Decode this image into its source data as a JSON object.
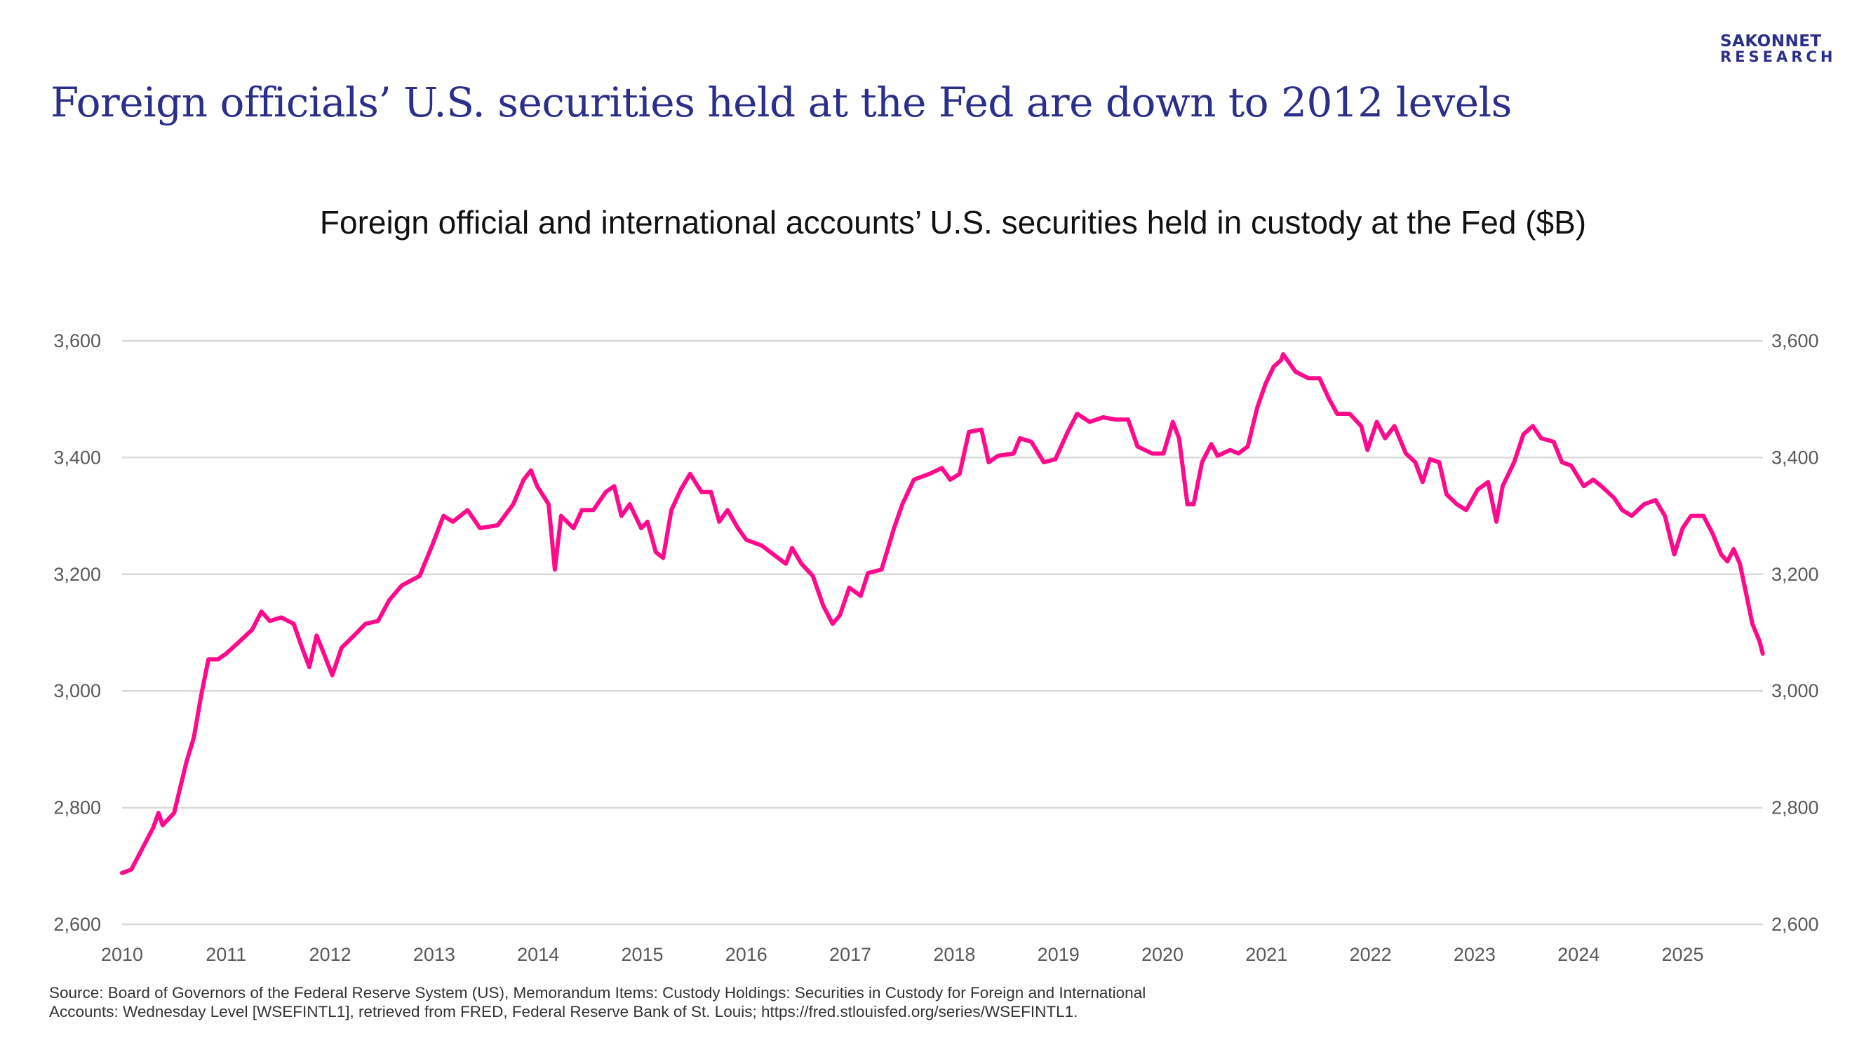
{
  "header": {
    "title": "Foreign officials’ U.S. securities held at the Fed are down to 2012 levels",
    "logo_line1": "SAKONNET",
    "logo_line2": "RESEARCH"
  },
  "footer": {
    "source_line1": "Source: Board of Governors of the Federal Reserve System (US), Memorandum Items: Custody Holdings: Securities in Custody for Foreign and International",
    "source_line2": "Accounts: Wednesday Level [WSEFINTL1], retrieved from FRED, Federal Reserve Bank of St. Louis; https://fred.stlouisfed.org/series/WSEFINTL1."
  },
  "chart_data": {
    "type": "line",
    "title": "Foreign official and international accounts’ U.S. securities held in custody at the Fed ($B)",
    "xlabel": "",
    "ylabel": "",
    "ylim": [
      2600,
      3600
    ],
    "xlim": [
      2010,
      2025.77
    ],
    "grid": true,
    "line_color": "#ff0a8c",
    "y_ticks": [
      "2,600",
      "2,800",
      "3,000",
      "3,200",
      "3,400",
      "3,600"
    ],
    "y_tick_values": [
      2600,
      2800,
      3000,
      3200,
      3400,
      3600
    ],
    "x_ticks": [
      "2010",
      "2011",
      "2012",
      "2013",
      "2014",
      "2015",
      "2016",
      "2017",
      "2018",
      "2019",
      "2020",
      "2021",
      "2022",
      "2023",
      "2024",
      "2025"
    ],
    "series": [
      {
        "name": "WSEFINTL1",
        "x": [
          2010.0,
          2010.09,
          2010.18,
          2010.3,
          2010.35,
          2010.39,
          2010.5,
          2010.55,
          2010.62,
          2010.69,
          2010.76,
          2010.83,
          2010.92,
          2011.0,
          2011.13,
          2011.25,
          2011.34,
          2011.42,
          2011.53,
          2011.65,
          2011.73,
          2011.8,
          2011.87,
          2011.94,
          2012.02,
          2012.11,
          2012.23,
          2012.34,
          2012.46,
          2012.57,
          2012.69,
          2012.86,
          2012.98,
          2013.09,
          2013.18,
          2013.32,
          2013.44,
          2013.61,
          2013.76,
          2013.86,
          2013.93,
          2013.99,
          2014.1,
          2014.16,
          2014.22,
          2014.34,
          2014.42,
          2014.53,
          2014.65,
          2014.73,
          2014.8,
          2014.88,
          2014.99,
          2015.05,
          2015.13,
          2015.2,
          2015.28,
          2015.37,
          2015.46,
          2015.57,
          2015.66,
          2015.74,
          2015.82,
          2015.92,
          2016.0,
          2016.15,
          2016.26,
          2016.38,
          2016.44,
          2016.53,
          2016.64,
          2016.74,
          2016.83,
          2016.9,
          2016.99,
          2017.1,
          2017.17,
          2017.3,
          2017.42,
          2017.5,
          2017.61,
          2017.76,
          2017.88,
          2017.96,
          2018.05,
          2018.14,
          2018.26,
          2018.33,
          2018.42,
          2018.57,
          2018.63,
          2018.74,
          2018.86,
          2018.97,
          2019.09,
          2019.18,
          2019.3,
          2019.43,
          2019.55,
          2019.67,
          2019.76,
          2019.9,
          2020.01,
          2020.1,
          2020.16,
          2020.24,
          2020.3,
          2020.38,
          2020.47,
          2020.53,
          2020.65,
          2020.73,
          2020.82,
          2020.91,
          2020.99,
          2021.07,
          2021.14,
          2021.16,
          2021.28,
          2021.4,
          2021.51,
          2021.6,
          2021.68,
          2021.8,
          2021.91,
          2021.97,
          2022.06,
          2022.14,
          2022.23,
          2022.34,
          2022.43,
          2022.5,
          2022.57,
          2022.66,
          2022.73,
          2022.83,
          2022.92,
          2023.03,
          2023.13,
          2023.21,
          2023.27,
          2023.38,
          2023.47,
          2023.56,
          2023.64,
          2023.76,
          2023.84,
          2023.93,
          2024.05,
          2024.14,
          2024.22,
          2024.34,
          2024.42,
          2024.51,
          2024.63,
          2024.74,
          2024.83,
          2024.92,
          2025.0,
          2025.08,
          2025.2,
          2025.29,
          2025.37,
          2025.43,
          2025.49,
          2025.55,
          2025.61,
          2025.67,
          2025.74,
          2025.77
        ],
        "y": [
          2688,
          2694,
          2725,
          2766,
          2791,
          2770,
          2791,
          2828,
          2879,
          2920,
          2992,
          3054,
          3054,
          3064,
          3085,
          3105,
          3136,
          3120,
          3126,
          3115,
          3074,
          3041,
          3095,
          3064,
          3027,
          3074,
          3095,
          3115,
          3120,
          3156,
          3181,
          3197,
          3249,
          3300,
          3290,
          3310,
          3279,
          3284,
          3320,
          3362,
          3378,
          3351,
          3320,
          3208,
          3300,
          3279,
          3310,
          3310,
          3341,
          3351,
          3300,
          3320,
          3279,
          3290,
          3238,
          3228,
          3310,
          3345,
          3372,
          3341,
          3341,
          3290,
          3310,
          3279,
          3259,
          3249,
          3234,
          3218,
          3245,
          3218,
          3197,
          3146,
          3115,
          3130,
          3177,
          3163,
          3202,
          3208,
          3279,
          3320,
          3362,
          3372,
          3382,
          3362,
          3372,
          3444,
          3448,
          3392,
          3403,
          3407,
          3433,
          3427,
          3392,
          3397,
          3444,
          3475,
          3461,
          3469,
          3465,
          3465,
          3419,
          3407,
          3407,
          3461,
          3433,
          3320,
          3320,
          3392,
          3423,
          3403,
          3413,
          3407,
          3419,
          3485,
          3526,
          3556,
          3567,
          3577,
          3547,
          3536,
          3536,
          3501,
          3475,
          3475,
          3454,
          3413,
          3461,
          3433,
          3454,
          3407,
          3392,
          3358,
          3397,
          3392,
          3337,
          3320,
          3310,
          3345,
          3358,
          3290,
          3351,
          3392,
          3440,
          3454,
          3433,
          3427,
          3392,
          3386,
          3351,
          3362,
          3351,
          3331,
          3310,
          3300,
          3320,
          3327,
          3300,
          3234,
          3279,
          3300,
          3300,
          3269,
          3234,
          3222,
          3243,
          3218,
          3167,
          3115,
          3085,
          3064
        ]
      }
    ]
  }
}
